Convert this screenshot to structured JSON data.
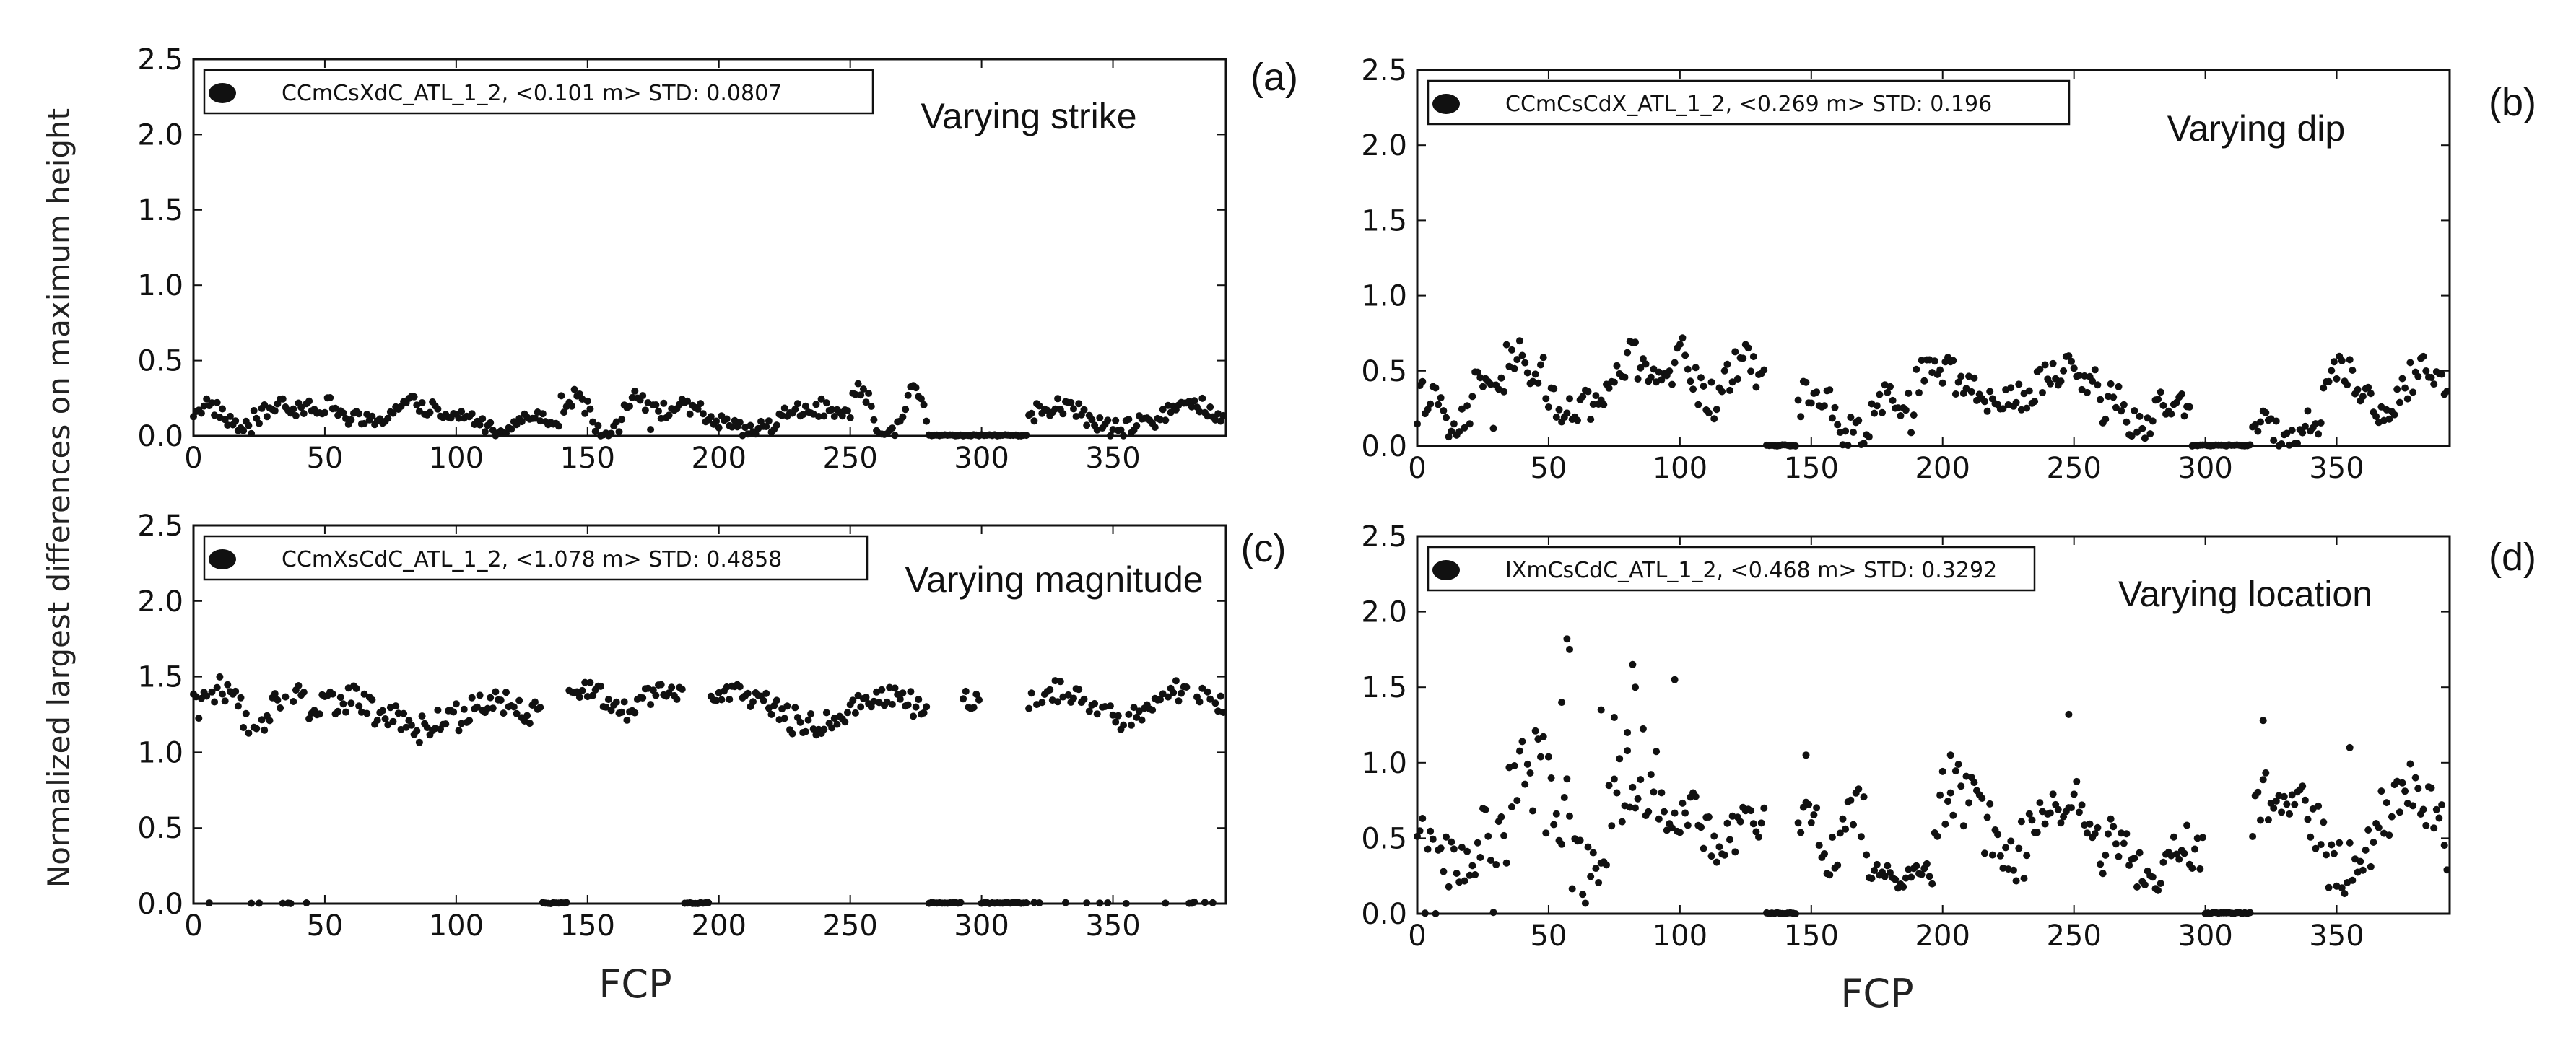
{
  "figure": {
    "ylabel": "Normalized largest differences on maximum height",
    "xlabel": "FCP"
  },
  "chart_data": [
    {
      "type": "scatter",
      "panel": "(a)",
      "annotation": "Varying strike",
      "legend": "CCmCsXdC_ATL_1_2, <0.101 m> STD: 0.0807",
      "xlim": [
        0,
        393
      ],
      "ylim": [
        0,
        2.5
      ],
      "xticks": [
        0,
        50,
        100,
        150,
        200,
        250,
        300,
        350
      ],
      "yticks": [
        "0.0",
        "0.5",
        "1.0",
        "1.5",
        "2.0",
        "2.5"
      ],
      "segments": [
        {
          "x0": 0,
          "x1": 40,
          "mean": 0.13,
          "amp": 0.08,
          "noise": 0.06,
          "floor": 0
        },
        {
          "x0": 40,
          "x1": 95,
          "mean": 0.15,
          "amp": 0.06,
          "noise": 0.06,
          "floor": 0
        },
        {
          "x0": 95,
          "x1": 140,
          "mean": 0.09,
          "amp": 0.05,
          "noise": 0.04,
          "floor": 0
        },
        {
          "x0": 140,
          "x1": 175,
          "mean": 0.13,
          "amp": 0.14,
          "noise": 0.06,
          "floor": 0
        },
        {
          "x0": 175,
          "x1": 250,
          "mean": 0.11,
          "amp": 0.08,
          "noise": 0.06,
          "floor": 0
        },
        {
          "x0": 250,
          "x1": 280,
          "mean": 0.13,
          "amp": 0.16,
          "noise": 0.06,
          "floor": 0
        },
        {
          "x0": 280,
          "x1": 318,
          "mean": 0.0,
          "amp": 0.0,
          "noise": 0.0,
          "floor": 0
        },
        {
          "x0": 318,
          "x1": 393,
          "mean": 0.12,
          "amp": 0.08,
          "noise": 0.06,
          "floor": 0
        }
      ]
    },
    {
      "type": "scatter",
      "panel": "(b)",
      "annotation": "Varying dip",
      "legend": "CCmCsCdX_ATL_1_2, <0.269 m> STD: 0.196",
      "xlim": [
        0,
        393
      ],
      "ylim": [
        0,
        2.5
      ],
      "xticks": [
        0,
        50,
        100,
        150,
        200,
        250,
        300,
        350
      ],
      "yticks": [
        "0.0",
        "0.5",
        "1.0",
        "1.5",
        "2.0",
        "2.5"
      ],
      "segments": [
        {
          "x0": 0,
          "x1": 30,
          "mean": 0.22,
          "amp": 0.15,
          "noise": 0.14,
          "floor": 0
        },
        {
          "x0": 30,
          "x1": 95,
          "mean": 0.38,
          "amp": 0.18,
          "noise": 0.15,
          "floor": 0
        },
        {
          "x0": 95,
          "x1": 133,
          "mean": 0.45,
          "amp": 0.15,
          "noise": 0.13,
          "floor": 0
        },
        {
          "x0": 133,
          "x1": 145,
          "mean": 0.0,
          "amp": 0.0,
          "noise": 0.0,
          "floor": 0
        },
        {
          "x0": 145,
          "x1": 190,
          "mean": 0.22,
          "amp": 0.15,
          "noise": 0.12,
          "floor": 0
        },
        {
          "x0": 190,
          "x1": 260,
          "mean": 0.38,
          "amp": 0.12,
          "noise": 0.12,
          "floor": 0
        },
        {
          "x0": 260,
          "x1": 295,
          "mean": 0.22,
          "amp": 0.1,
          "noise": 0.12,
          "floor": 0
        },
        {
          "x0": 295,
          "x1": 318,
          "mean": 0.0,
          "amp": 0.0,
          "noise": 0.0,
          "floor": 0
        },
        {
          "x0": 318,
          "x1": 345,
          "mean": 0.1,
          "amp": 0.06,
          "noise": 0.08,
          "floor": 0
        },
        {
          "x0": 345,
          "x1": 393,
          "mean": 0.38,
          "amp": 0.15,
          "noise": 0.1,
          "floor": 0
        }
      ]
    },
    {
      "type": "scatter",
      "panel": "(c)",
      "annotation": "Varying magnitude",
      "legend": "CCmXsCdC_ATL_1_2, <1.078 m> STD: 0.4858",
      "xlim": [
        0,
        393
      ],
      "ylim": [
        0,
        2.5
      ],
      "xticks": [
        0,
        50,
        100,
        150,
        200,
        250,
        300,
        350
      ],
      "yticks": [
        "0.0",
        "0.5",
        "1.0",
        "1.5",
        "2.0",
        "2.5"
      ],
      "segments": [
        {
          "x0": 0,
          "x1": 5,
          "mean": 1.3,
          "amp": 0.08,
          "noise": 0.08,
          "floor": 0
        },
        {
          "x0": 5,
          "x1": 45,
          "mean": 1.3,
          "amp": 0.1,
          "noise": 0.1,
          "floor": 0.2
        },
        {
          "x0": 45,
          "x1": 133,
          "mean": 1.25,
          "amp": 0.1,
          "noise": 0.1,
          "floor": 0
        },
        {
          "x0": 133,
          "x1": 143,
          "mean": 0.0,
          "amp": 0.0,
          "noise": 0.0,
          "floor": 0
        },
        {
          "x0": 143,
          "x1": 187,
          "mean": 1.35,
          "amp": 0.08,
          "noise": 0.07,
          "floor": 0
        },
        {
          "x0": 187,
          "x1": 197,
          "mean": 0.0,
          "amp": 0.0,
          "noise": 0.0,
          "floor": 0
        },
        {
          "x0": 197,
          "x1": 280,
          "mean": 1.28,
          "amp": 0.1,
          "noise": 0.08,
          "floor": 0
        },
        {
          "x0": 280,
          "x1": 293,
          "mean": 0.0,
          "amp": 0.0,
          "noise": 0.0,
          "floor": 0
        },
        {
          "x0": 293,
          "x1": 300,
          "mean": 1.32,
          "amp": 0.05,
          "noise": 0.05,
          "floor": 0
        },
        {
          "x0": 300,
          "x1": 318,
          "mean": 0.0,
          "amp": 0.0,
          "noise": 0.0,
          "floor": 0
        },
        {
          "x0": 318,
          "x1": 393,
          "mean": 1.3,
          "amp": 0.1,
          "noise": 0.08,
          "floor": 0.15
        }
      ]
    },
    {
      "type": "scatter",
      "panel": "(d)",
      "annotation": "Varying location",
      "legend": "IXmCsCdC_ATL_1_2, <0.468 m> STD: 0.3292",
      "xlim": [
        0,
        393
      ],
      "ylim": [
        0,
        2.5
      ],
      "xticks": [
        0,
        50,
        100,
        150,
        200,
        250,
        300,
        350
      ],
      "yticks": [
        "0.0",
        "0.5",
        "1.0",
        "1.5",
        "2.0",
        "2.5"
      ],
      "segments": [
        {
          "x0": 0,
          "x1": 35,
          "mean": 0.4,
          "amp": 0.15,
          "noise": 0.2,
          "floor": 0.2
        },
        {
          "x0": 35,
          "x1": 100,
          "mean": 0.65,
          "amp": 0.3,
          "noise": 0.3,
          "floor": 0
        },
        {
          "x0": 100,
          "x1": 133,
          "mean": 0.55,
          "amp": 0.12,
          "noise": 0.15,
          "floor": 0
        },
        {
          "x0": 133,
          "x1": 145,
          "mean": 0.0,
          "amp": 0.0,
          "noise": 0.0,
          "floor": 0
        },
        {
          "x0": 145,
          "x1": 172,
          "mean": 0.55,
          "amp": 0.15,
          "noise": 0.15,
          "floor": 0
        },
        {
          "x0": 172,
          "x1": 197,
          "mean": 0.25,
          "amp": 0.05,
          "noise": 0.06,
          "floor": 0
        },
        {
          "x0": 197,
          "x1": 260,
          "mean": 0.6,
          "amp": 0.2,
          "noise": 0.2,
          "floor": 0
        },
        {
          "x0": 260,
          "x1": 300,
          "mean": 0.35,
          "amp": 0.15,
          "noise": 0.15,
          "floor": 0
        },
        {
          "x0": 300,
          "x1": 318,
          "mean": 0.0,
          "amp": 0.0,
          "noise": 0.0,
          "floor": 0
        },
        {
          "x0": 318,
          "x1": 393,
          "mean": 0.55,
          "amp": 0.25,
          "noise": 0.22,
          "floor": 0
        }
      ],
      "outliers": [
        {
          "x": 57,
          "y": 1.82
        },
        {
          "x": 58,
          "y": 1.75
        },
        {
          "x": 55,
          "y": 1.4
        },
        {
          "x": 82,
          "y": 1.65
        },
        {
          "x": 83,
          "y": 1.5
        },
        {
          "x": 98,
          "y": 1.55
        },
        {
          "x": 70,
          "y": 1.35
        },
        {
          "x": 75,
          "y": 1.3
        },
        {
          "x": 80,
          "y": 1.2
        },
        {
          "x": 248,
          "y": 1.32
        },
        {
          "x": 322,
          "y": 1.28
        },
        {
          "x": 355,
          "y": 1.1
        },
        {
          "x": 148,
          "y": 1.05
        },
        {
          "x": 203,
          "y": 1.05
        }
      ]
    }
  ]
}
